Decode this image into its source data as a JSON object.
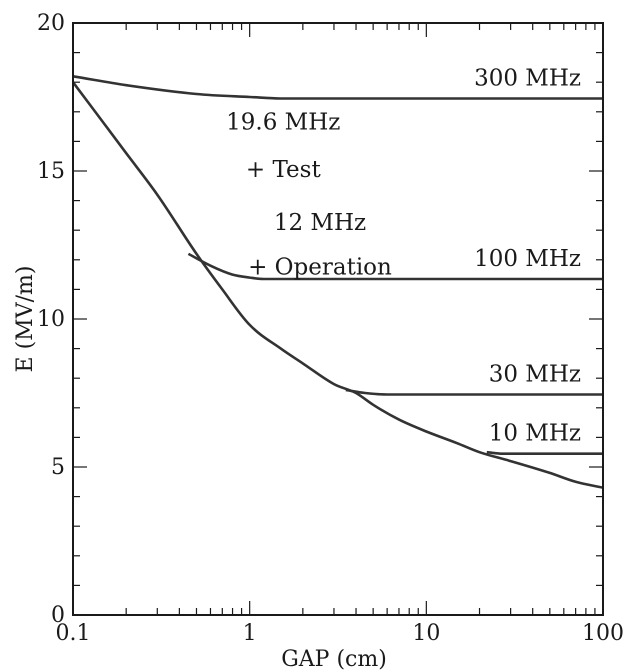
{
  "chart_data": {
    "type": "line",
    "xlabel": "GAP (cm)",
    "ylabel": "E (MV/m)",
    "xscale": "log",
    "xlim": [
      0.1,
      100
    ],
    "ylim": [
      0,
      20
    ],
    "x_ticks": [
      0.1,
      1,
      10,
      100
    ],
    "x_tick_labels": [
      "0.1",
      "1",
      "10",
      "100"
    ],
    "y_ticks": [
      0,
      5,
      10,
      15,
      20
    ],
    "y_tick_labels": [
      "0",
      "5",
      "10",
      "15",
      "20"
    ],
    "grid": false,
    "envelope": {
      "x": [
        0.1,
        0.15,
        0.2,
        0.3,
        0.5,
        0.7,
        1,
        1.5,
        2,
        3,
        4,
        5,
        7,
        10,
        15,
        20,
        30,
        50,
        70,
        100
      ],
      "y": [
        18.0,
        16.6,
        15.6,
        14.2,
        12.2,
        11.0,
        9.8,
        9.0,
        8.5,
        7.8,
        7.5,
        7.1,
        6.6,
        6.2,
        5.8,
        5.5,
        5.2,
        4.8,
        4.5,
        4.3
      ]
    },
    "series": [
      {
        "name": "300 MHz",
        "x": [
          0.1,
          0.2,
          0.5,
          1,
          1.5,
          100
        ],
        "y": [
          18.2,
          17.9,
          17.6,
          17.5,
          17.45,
          17.45
        ]
      },
      {
        "name": "100 MHz",
        "x": [
          0.45,
          0.6,
          0.8,
          1,
          1.2,
          100
        ],
        "y": [
          12.2,
          11.8,
          11.5,
          11.4,
          11.35,
          11.35
        ]
      },
      {
        "name": "30 MHz",
        "x": [
          3.5,
          4.5,
          6,
          100
        ],
        "y": [
          7.6,
          7.5,
          7.45,
          7.45
        ]
      },
      {
        "name": "10 MHz",
        "x": [
          22,
          27,
          35,
          100
        ],
        "y": [
          5.5,
          5.45,
          5.45,
          5.45
        ]
      }
    ],
    "annotations": [
      {
        "text": "19.6 MHz",
        "x": 1.55,
        "y": 16.4
      },
      {
        "text": "+ Test",
        "x": 1.55,
        "y": 14.8
      },
      {
        "text": "12 MHz",
        "x": 2.5,
        "y": 13.0
      },
      {
        "text": "+ Operation",
        "x": 2.5,
        "y": 11.5
      }
    ]
  }
}
